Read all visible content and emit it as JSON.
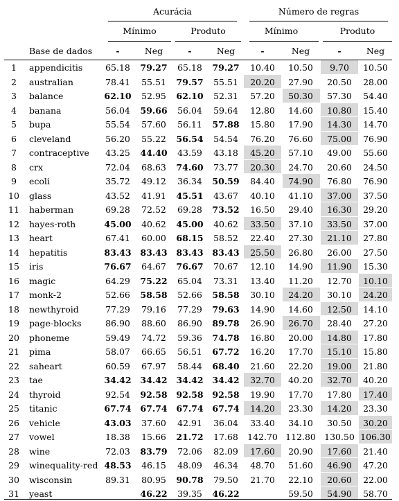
{
  "header": {
    "group_accuracy": "Acurácia",
    "group_rules": "Número de regras",
    "minimo": "Mínimo",
    "produto": "Produto",
    "dataset": "Base de dados",
    "dash": "-",
    "neg": "Neg"
  },
  "rows": [
    {
      "n": "1",
      "name": "appendicitis",
      "v": [
        "65.18",
        "79.27",
        "65.18",
        "79.27",
        "10.40",
        "10.50",
        "9.70",
        "10.50"
      ],
      "bold": [
        1,
        3
      ],
      "shade": [
        6
      ]
    },
    {
      "n": "2",
      "name": "australian",
      "v": [
        "78.41",
        "55.51",
        "79.57",
        "55.51",
        "20.20",
        "27.90",
        "20.50",
        "28.00"
      ],
      "bold": [
        2
      ],
      "shade": [
        4
      ]
    },
    {
      "n": "3",
      "name": "balance",
      "v": [
        "62.10",
        "52.95",
        "62.10",
        "52.31",
        "57.20",
        "50.30",
        "57.30",
        "54.40"
      ],
      "bold": [
        0,
        2
      ],
      "shade": [
        5
      ]
    },
    {
      "n": "4",
      "name": "banana",
      "v": [
        "56.04",
        "59.66",
        "56.04",
        "59.64",
        "12.80",
        "14.60",
        "10.80",
        "15.40"
      ],
      "bold": [
        1
      ],
      "shade": [
        6
      ]
    },
    {
      "n": "5",
      "name": "bupa",
      "v": [
        "55.54",
        "57.60",
        "56.11",
        "57.88",
        "15.80",
        "17.90",
        "14.30",
        "14.70"
      ],
      "bold": [
        3
      ],
      "shade": [
        6
      ]
    },
    {
      "n": "6",
      "name": "cleveland",
      "v": [
        "56.20",
        "55.22",
        "56.54",
        "54.54",
        "76.20",
        "76.60",
        "75.00",
        "76.90"
      ],
      "bold": [
        2
      ],
      "shade": [
        6
      ]
    },
    {
      "n": "7",
      "name": "contraceptive",
      "v": [
        "43.25",
        "44.40",
        "43.59",
        "43.18",
        "45.20",
        "57.10",
        "49.00",
        "55.60"
      ],
      "bold": [
        1
      ],
      "shade": [
        4
      ]
    },
    {
      "n": "8",
      "name": "crx",
      "v": [
        "72.04",
        "68.63",
        "74.60",
        "73.77",
        "20.30",
        "24.70",
        "20.60",
        "24.50"
      ],
      "bold": [
        2
      ],
      "shade": [
        4
      ]
    },
    {
      "n": "9",
      "name": "ecoli",
      "v": [
        "35.72",
        "49.12",
        "36.34",
        "50.59",
        "84.40",
        "74.90",
        "76.80",
        "76.90"
      ],
      "bold": [
        3
      ],
      "shade": [
        5
      ]
    },
    {
      "n": "10",
      "name": "glass",
      "v": [
        "43.52",
        "41.91",
        "45.51",
        "43.67",
        "40.10",
        "41.10",
        "37.00",
        "37.50"
      ],
      "bold": [
        2
      ],
      "shade": [
        6
      ]
    },
    {
      "n": "11",
      "name": "haberman",
      "v": [
        "69.28",
        "72.52",
        "69.28",
        "73.52",
        "16.50",
        "29.40",
        "16.30",
        "29.20"
      ],
      "bold": [
        3
      ],
      "shade": [
        6
      ]
    },
    {
      "n": "12",
      "name": "hayes-roth",
      "v": [
        "45.00",
        "40.62",
        "45.00",
        "40.62",
        "33.50",
        "37.10",
        "33.50",
        "37.00"
      ],
      "bold": [
        0,
        2
      ],
      "shade": [
        4,
        6
      ]
    },
    {
      "n": "13",
      "name": "heart",
      "v": [
        "67.41",
        "60.00",
        "68.15",
        "58.52",
        "22.40",
        "27.30",
        "21.10",
        "27.80"
      ],
      "bold": [
        2
      ],
      "shade": [
        6
      ]
    },
    {
      "n": "14",
      "name": "hepatitis",
      "v": [
        "83.43",
        "83.43",
        "83.43",
        "83.43",
        "25.50",
        "26.80",
        "26.00",
        "27.50"
      ],
      "bold": [
        0,
        1,
        2,
        3
      ],
      "shade": [
        4
      ]
    },
    {
      "n": "15",
      "name": "iris",
      "v": [
        "76.67",
        "64.67",
        "76.67",
        "70.67",
        "12.10",
        "14.90",
        "11.90",
        "15.30"
      ],
      "bold": [
        0,
        2
      ],
      "shade": [
        6
      ]
    },
    {
      "n": "16",
      "name": "magic",
      "v": [
        "64.29",
        "75.22",
        "65.04",
        "73.31",
        "13.40",
        "11.20",
        "12.70",
        "10.10"
      ],
      "bold": [
        1
      ],
      "shade": [
        7
      ]
    },
    {
      "n": "17",
      "name": "monk-2",
      "v": [
        "52.66",
        "58.58",
        "52.66",
        "58.58",
        "30.10",
        "24.20",
        "30.10",
        "24.20"
      ],
      "bold": [
        1,
        3
      ],
      "shade": [
        5,
        7
      ]
    },
    {
      "n": "18",
      "name": "newthyroid",
      "v": [
        "77.29",
        "79.16",
        "77.29",
        "79.63",
        "14.90",
        "14.60",
        "12.50",
        "14.10"
      ],
      "bold": [
        3
      ],
      "shade": [
        6
      ]
    },
    {
      "n": "19",
      "name": "page-blocks",
      "v": [
        "86.90",
        "88.60",
        "86.90",
        "89.78",
        "26.90",
        "26.70",
        "28.40",
        "27.20"
      ],
      "bold": [
        3
      ],
      "shade": [
        5
      ]
    },
    {
      "n": "20",
      "name": "phoneme",
      "v": [
        "59.49",
        "74.72",
        "59.36",
        "74.78",
        "16.80",
        "20.00",
        "14.80",
        "17.80"
      ],
      "bold": [
        3
      ],
      "shade": [
        6
      ]
    },
    {
      "n": "21",
      "name": "pima",
      "v": [
        "58.07",
        "66.65",
        "56.51",
        "67.72",
        "16.20",
        "17.70",
        "15.10",
        "15.80"
      ],
      "bold": [
        3
      ],
      "shade": [
        6
      ]
    },
    {
      "n": "22",
      "name": "saheart",
      "v": [
        "60.59",
        "67.97",
        "58.44",
        "68.40",
        "21.60",
        "22.20",
        "19.00",
        "21.80"
      ],
      "bold": [
        3
      ],
      "shade": [
        6
      ]
    },
    {
      "n": "23",
      "name": "tae",
      "v": [
        "34.42",
        "34.42",
        "34.42",
        "34.42",
        "32.70",
        "40.20",
        "32.70",
        "40.20"
      ],
      "bold": [
        0,
        1,
        2,
        3
      ],
      "shade": [
        4,
        6
      ]
    },
    {
      "n": "24",
      "name": "thyroid",
      "v": [
        "92.54",
        "92.58",
        "92.58",
        "92.58",
        "19.90",
        "17.70",
        "17.80",
        "17.40"
      ],
      "bold": [
        1,
        2,
        3
      ],
      "shade": [
        7
      ]
    },
    {
      "n": "25",
      "name": "titanic",
      "v": [
        "67.74",
        "67.74",
        "67.74",
        "67.74",
        "14.20",
        "23.30",
        "14.20",
        "23.30"
      ],
      "bold": [
        0,
        1,
        2,
        3
      ],
      "shade": [
        4,
        6
      ]
    },
    {
      "n": "26",
      "name": "vehicle",
      "v": [
        "43.03",
        "37.60",
        "42.91",
        "36.04",
        "33.40",
        "34.10",
        "30.50",
        "30.20"
      ],
      "bold": [
        0
      ],
      "shade": [
        7
      ]
    },
    {
      "n": "27",
      "name": "vowel",
      "v": [
        "18.38",
        "15.66",
        "21.72",
        "17.68",
        "142.70",
        "112.80",
        "130.50",
        "106.30"
      ],
      "bold": [
        2
      ],
      "shade": [
        7
      ]
    },
    {
      "n": "28",
      "name": "wine",
      "v": [
        "72.03",
        "83.79",
        "72.06",
        "82.09",
        "17.60",
        "20.90",
        "17.60",
        "21.40"
      ],
      "bold": [
        1
      ],
      "shade": [
        4,
        6
      ]
    },
    {
      "n": "29",
      "name": "winequality-red",
      "v": [
        "48.53",
        "46.15",
        "48.09",
        "46.34",
        "48.70",
        "51.60",
        "46.90",
        "47.20"
      ],
      "bold": [
        0
      ],
      "shade": [
        6
      ]
    },
    {
      "n": "30",
      "name": "wisconsin",
      "v": [
        "89.31",
        "80.95",
        "90.78",
        "79.50",
        "21.70",
        "22.10",
        "20.60",
        "22.00"
      ],
      "bold": [
        2
      ],
      "shade": [
        6
      ]
    },
    {
      "n": "31",
      "name": "yeast",
      "v": [
        "",
        "46.22",
        "39.35",
        "46.22",
        "",
        "59.50",
        "54.90",
        "58.70"
      ],
      "bold": [
        1,
        3
      ],
      "shade": [
        6
      ]
    }
  ]
}
